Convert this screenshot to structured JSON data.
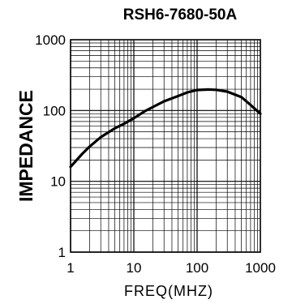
{
  "chart_data": {
    "type": "line",
    "title": "RSH6-7680-50A",
    "xlabel": "FREQ(MHZ)",
    "ylabel": "IMPEDANCE",
    "x_scale": "log",
    "y_scale": "log",
    "xlim": [
      1,
      1000
    ],
    "ylim": [
      1,
      1000
    ],
    "grid": true,
    "x_ticks": [
      "1",
      "10",
      "100",
      "1000"
    ],
    "y_ticks": [
      "1",
      "10",
      "100",
      "1000"
    ],
    "series": [
      {
        "x": [
          1,
          1.5,
          2,
          3,
          5,
          7,
          10,
          15,
          20,
          30,
          50,
          70,
          100,
          150,
          200,
          300,
          500,
          700,
          1000
        ],
        "y": [
          16,
          24,
          31,
          42,
          56,
          65,
          78,
          98,
          112,
          135,
          160,
          180,
          195,
          198,
          196,
          185,
          155,
          120,
          90
        ]
      }
    ]
  }
}
